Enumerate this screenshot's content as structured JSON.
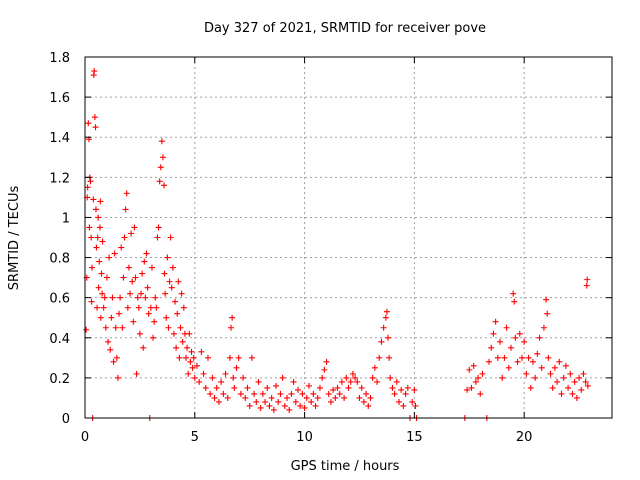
{
  "chart_data": {
    "type": "scatter",
    "title": "Day 327 of 2021, SRMTID for receiver pove",
    "xlabel": "GPS time / hours",
    "ylabel": "SRMTID / TECUs",
    "xlim": [
      0,
      24
    ],
    "ylim": [
      0,
      1.8
    ],
    "xticks": [
      0,
      5,
      10,
      15,
      20
    ],
    "xtick_labels": [
      "0",
      "5",
      "10",
      "15",
      "20"
    ],
    "yticks": [
      0,
      0.2,
      0.4,
      0.6,
      0.8,
      1.0,
      1.2,
      1.4,
      1.6,
      1.8
    ],
    "ytick_labels": [
      "0",
      "0.2",
      "0.4",
      "0.6",
      "0.8",
      "1",
      "1.2",
      "1.4",
      "1.6",
      "1.8"
    ],
    "grid": true,
    "marker": "plus",
    "color": "#ff0000",
    "series": [
      {
        "name": "SRMTID",
        "points": [
          [
            0.05,
            0.44
          ],
          [
            0.08,
            0.7
          ],
          [
            0.1,
            1.1
          ],
          [
            0.12,
            1.15
          ],
          [
            0.15,
            1.47
          ],
          [
            0.18,
            1.39
          ],
          [
            0.2,
            0.95
          ],
          [
            0.22,
            1.2
          ],
          [
            0.25,
            1.18
          ],
          [
            0.28,
            0.9
          ],
          [
            0.3,
            0.58
          ],
          [
            0.32,
            0.75
          ],
          [
            0.35,
            0.0
          ],
          [
            0.38,
            1.09
          ],
          [
            0.4,
            1.71
          ],
          [
            0.42,
            1.73
          ],
          [
            0.45,
            1.5
          ],
          [
            0.48,
            1.45
          ],
          [
            0.5,
            1.04
          ],
          [
            0.52,
            0.85
          ],
          [
            0.55,
            0.55
          ],
          [
            0.58,
            0.9
          ],
          [
            0.6,
            1.0
          ],
          [
            0.62,
            0.65
          ],
          [
            0.65,
            0.78
          ],
          [
            0.68,
            0.95
          ],
          [
            0.7,
            1.08
          ],
          [
            0.72,
            0.5
          ],
          [
            0.75,
            0.72
          ],
          [
            0.78,
            0.62
          ],
          [
            0.8,
            0.88
          ],
          [
            0.85,
            0.55
          ],
          [
            0.9,
            0.6
          ],
          [
            0.95,
            0.45
          ],
          [
            1.0,
            0.7
          ],
          [
            1.05,
            0.38
          ],
          [
            1.1,
            0.8
          ],
          [
            1.15,
            0.34
          ],
          [
            1.2,
            0.5
          ],
          [
            1.25,
            0.6
          ],
          [
            1.3,
            0.28
          ],
          [
            1.35,
            0.82
          ],
          [
            1.4,
            0.45
          ],
          [
            1.45,
            0.3
          ],
          [
            1.5,
            0.2
          ],
          [
            1.55,
            0.52
          ],
          [
            1.6,
            0.6
          ],
          [
            1.65,
            0.85
          ],
          [
            1.7,
            0.45
          ],
          [
            1.75,
            0.7
          ],
          [
            1.8,
            0.9
          ],
          [
            1.85,
            1.04
          ],
          [
            1.9,
            1.12
          ],
          [
            1.95,
            0.55
          ],
          [
            2.0,
            0.75
          ],
          [
            2.05,
            0.62
          ],
          [
            2.1,
            0.92
          ],
          [
            2.15,
            0.68
          ],
          [
            2.2,
            0.48
          ],
          [
            2.25,
            0.95
          ],
          [
            2.3,
            0.7
          ],
          [
            2.35,
            0.22
          ],
          [
            2.4,
            0.6
          ],
          [
            2.45,
            0.55
          ],
          [
            2.5,
            0.42
          ],
          [
            2.55,
            0.62
          ],
          [
            2.6,
            0.72
          ],
          [
            2.65,
            0.35
          ],
          [
            2.7,
            0.78
          ],
          [
            2.75,
            0.6
          ],
          [
            2.8,
            0.82
          ],
          [
            2.85,
            0.65
          ],
          [
            2.9,
            0.52
          ],
          [
            2.95,
            0.0
          ],
          [
            3.0,
            0.55
          ],
          [
            3.05,
            0.75
          ],
          [
            3.1,
            0.4
          ],
          [
            3.15,
            0.48
          ],
          [
            3.2,
            0.6
          ],
          [
            3.25,
            0.55
          ],
          [
            3.3,
            0.9
          ],
          [
            3.35,
            0.95
          ],
          [
            3.4,
            1.18
          ],
          [
            3.45,
            1.25
          ],
          [
            3.5,
            1.38
          ],
          [
            3.55,
            1.3
          ],
          [
            3.6,
            1.16
          ],
          [
            3.62,
            0.72
          ],
          [
            3.65,
            0.62
          ],
          [
            3.7,
            0.5
          ],
          [
            3.75,
            0.8
          ],
          [
            3.8,
            0.45
          ],
          [
            3.85,
            0.68
          ],
          [
            3.9,
            0.9
          ],
          [
            3.95,
            0.65
          ],
          [
            4.0,
            0.75
          ],
          [
            4.05,
            0.42
          ],
          [
            4.1,
            0.58
          ],
          [
            4.15,
            0.35
          ],
          [
            4.2,
            0.52
          ],
          [
            4.25,
            0.68
          ],
          [
            4.3,
            0.3
          ],
          [
            4.35,
            0.45
          ],
          [
            4.4,
            0.62
          ],
          [
            4.45,
            0.38
          ],
          [
            4.5,
            0.55
          ],
          [
            4.55,
            0.42
          ],
          [
            4.6,
            0.3
          ],
          [
            4.65,
            0.35
          ],
          [
            4.7,
            0.22
          ],
          [
            4.75,
            0.42
          ],
          [
            4.8,
            0.28
          ],
          [
            4.85,
            0.33
          ],
          [
            4.9,
            0.25
          ],
          [
            4.95,
            0.3
          ],
          [
            5.0,
            0.2
          ],
          [
            5.1,
            0.26
          ],
          [
            5.2,
            0.18
          ],
          [
            5.3,
            0.33
          ],
          [
            5.4,
            0.22
          ],
          [
            5.5,
            0.15
          ],
          [
            5.6,
            0.3
          ],
          [
            5.7,
            0.12
          ],
          [
            5.8,
            0.2
          ],
          [
            5.9,
            0.1
          ],
          [
            6.0,
            0.15
          ],
          [
            6.1,
            0.08
          ],
          [
            6.2,
            0.18
          ],
          [
            6.3,
            0.12
          ],
          [
            6.4,
            0.22
          ],
          [
            6.5,
            0.1
          ],
          [
            6.6,
            0.3
          ],
          [
            6.65,
            0.45
          ],
          [
            6.7,
            0.5
          ],
          [
            6.75,
            0.2
          ],
          [
            6.8,
            0.15
          ],
          [
            6.9,
            0.25
          ],
          [
            7.0,
            0.3
          ],
          [
            7.1,
            0.12
          ],
          [
            7.2,
            0.2
          ],
          [
            7.3,
            0.1
          ],
          [
            7.4,
            0.15
          ],
          [
            7.5,
            0.06
          ],
          [
            7.6,
            0.3
          ],
          [
            7.7,
            0.12
          ],
          [
            7.8,
            0.08
          ],
          [
            7.9,
            0.18
          ],
          [
            8.0,
            0.05
          ],
          [
            8.1,
            0.12
          ],
          [
            8.2,
            0.08
          ],
          [
            8.3,
            0.15
          ],
          [
            8.4,
            0.06
          ],
          [
            8.5,
            0.1
          ],
          [
            8.6,
            0.04
          ],
          [
            8.7,
            0.16
          ],
          [
            8.8,
            0.08
          ],
          [
            8.9,
            0.12
          ],
          [
            9.0,
            0.2
          ],
          [
            9.1,
            0.06
          ],
          [
            9.2,
            0.1
          ],
          [
            9.3,
            0.04
          ],
          [
            9.4,
            0.12
          ],
          [
            9.5,
            0.18
          ],
          [
            9.6,
            0.08
          ],
          [
            9.7,
            0.14
          ],
          [
            9.8,
            0.06
          ],
          [
            9.9,
            0.12
          ],
          [
            10.0,
            0.05
          ],
          [
            10.1,
            0.1
          ],
          [
            10.2,
            0.16
          ],
          [
            10.3,
            0.08
          ],
          [
            10.4,
            0.12
          ],
          [
            10.5,
            0.06
          ],
          [
            10.6,
            0.1
          ],
          [
            10.7,
            0.15
          ],
          [
            10.8,
            0.2
          ],
          [
            10.9,
            0.24
          ],
          [
            11.0,
            0.28
          ],
          [
            11.1,
            0.12
          ],
          [
            11.2,
            0.08
          ],
          [
            11.3,
            0.14
          ],
          [
            11.4,
            0.1
          ],
          [
            11.5,
            0.15
          ],
          [
            11.6,
            0.12
          ],
          [
            11.7,
            0.18
          ],
          [
            11.8,
            0.1
          ],
          [
            11.9,
            0.2
          ],
          [
            12.0,
            0.15
          ],
          [
            12.1,
            0.18
          ],
          [
            12.2,
            0.22
          ],
          [
            12.3,
            0.2
          ],
          [
            12.4,
            0.18
          ],
          [
            12.5,
            0.1
          ],
          [
            12.6,
            0.15
          ],
          [
            12.7,
            0.08
          ],
          [
            12.8,
            0.12
          ],
          [
            12.9,
            0.06
          ],
          [
            13.0,
            0.1
          ],
          [
            13.1,
            0.2
          ],
          [
            13.2,
            0.25
          ],
          [
            13.3,
            0.18
          ],
          [
            13.4,
            0.3
          ],
          [
            13.5,
            0.38
          ],
          [
            13.6,
            0.45
          ],
          [
            13.7,
            0.5
          ],
          [
            13.75,
            0.53
          ],
          [
            13.8,
            0.4
          ],
          [
            13.85,
            0.3
          ],
          [
            13.9,
            0.2
          ],
          [
            14.0,
            0.15
          ],
          [
            14.1,
            0.12
          ],
          [
            14.2,
            0.18
          ],
          [
            14.3,
            0.08
          ],
          [
            14.4,
            0.14
          ],
          [
            14.5,
            0.06
          ],
          [
            14.6,
            0.12
          ],
          [
            14.7,
            0.15
          ],
          [
            14.8,
            0.0
          ],
          [
            14.9,
            0.08
          ],
          [
            15.0,
            0.14
          ],
          [
            15.05,
            0.06
          ],
          [
            15.1,
            0.0
          ],
          [
            17.3,
            0.0
          ],
          [
            17.4,
            0.14
          ],
          [
            17.5,
            0.24
          ],
          [
            17.6,
            0.15
          ],
          [
            17.7,
            0.26
          ],
          [
            17.8,
            0.18
          ],
          [
            17.9,
            0.2
          ],
          [
            18.0,
            0.12
          ],
          [
            18.1,
            0.22
          ],
          [
            18.3,
            0.0
          ],
          [
            18.4,
            0.28
          ],
          [
            18.5,
            0.35
          ],
          [
            18.6,
            0.42
          ],
          [
            18.7,
            0.48
          ],
          [
            18.8,
            0.3
          ],
          [
            18.9,
            0.38
          ],
          [
            19.0,
            0.2
          ],
          [
            19.1,
            0.3
          ],
          [
            19.2,
            0.45
          ],
          [
            19.3,
            0.25
          ],
          [
            19.4,
            0.35
          ],
          [
            19.5,
            0.62
          ],
          [
            19.55,
            0.58
          ],
          [
            19.6,
            0.4
          ],
          [
            19.7,
            0.28
          ],
          [
            19.8,
            0.42
          ],
          [
            19.9,
            0.3
          ],
          [
            20.0,
            0.38
          ],
          [
            20.1,
            0.22
          ],
          [
            20.2,
            0.3
          ],
          [
            20.3,
            0.15
          ],
          [
            20.4,
            0.28
          ],
          [
            20.5,
            0.2
          ],
          [
            20.6,
            0.32
          ],
          [
            20.7,
            0.4
          ],
          [
            20.8,
            0.25
          ],
          [
            20.9,
            0.45
          ],
          [
            21.0,
            0.59
          ],
          [
            21.05,
            0.52
          ],
          [
            21.1,
            0.3
          ],
          [
            21.2,
            0.22
          ],
          [
            21.3,
            0.15
          ],
          [
            21.4,
            0.25
          ],
          [
            21.5,
            0.18
          ],
          [
            21.6,
            0.28
          ],
          [
            21.7,
            0.12
          ],
          [
            21.8,
            0.2
          ],
          [
            21.9,
            0.26
          ],
          [
            22.0,
            0.15
          ],
          [
            22.1,
            0.22
          ],
          [
            22.2,
            0.12
          ],
          [
            22.3,
            0.18
          ],
          [
            22.4,
            0.1
          ],
          [
            22.5,
            0.2
          ],
          [
            22.6,
            0.14
          ],
          [
            22.7,
            0.22
          ],
          [
            22.8,
            0.18
          ],
          [
            22.85,
            0.66
          ],
          [
            22.87,
            0.69
          ],
          [
            22.9,
            0.16
          ]
        ]
      }
    ]
  }
}
